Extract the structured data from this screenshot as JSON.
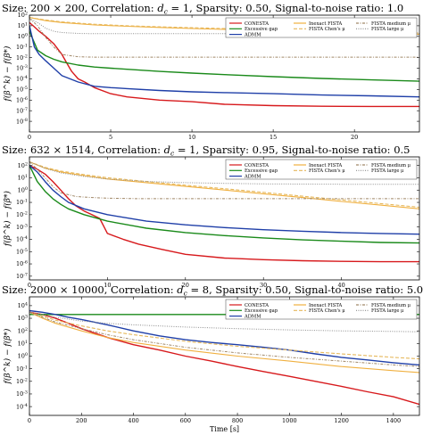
{
  "chart_data": [
    {
      "type": "line",
      "title": "Size: 200 × 200, Correlation: d_c = 1, Sparsity: 0.50, Signal-to-noise ratio: 1.0",
      "title_parts": {
        "size": "Size: 200 × 200, Correlation: ",
        "dc_symbol": "d",
        "dc_sub": "c",
        "rest": " = 1, Sparsity: 0.50, Signal-to-noise ratio: 1.0"
      },
      "xlabel": "",
      "ylabel": "f(β^k) − f(β*)",
      "xscale": "linear",
      "yscale": "log",
      "xlim": [
        0,
        24
      ],
      "ylim": [
        1e-09,
        100.0
      ],
      "xticks": [
        0,
        5,
        10,
        15,
        20
      ],
      "xtick_labels": [
        "0",
        "5",
        "10",
        "15",
        "20"
      ],
      "yticks": [
        100.0,
        10.0,
        1.0,
        0.1,
        0.01,
        0.001,
        0.0001,
        1e-05,
        1e-06,
        1e-07,
        1e-08
      ],
      "ytick_labels": [
        "10^2",
        "10^1",
        "10^0",
        "10^-1",
        "10^-2",
        "10^-3",
        "10^-4",
        "10^-5",
        "10^-6",
        "10^-7",
        "10^-8"
      ],
      "legend": {
        "placement": "top-right",
        "entries": [
          "CONESTA",
          "Excessive gap",
          "ADMM",
          "Inexact FISTA",
          "FISTA Chen's μ",
          "FISTA medium μ",
          "FISTA large μ"
        ]
      },
      "series": [
        {
          "name": "CONESTA",
          "x": [
            0,
            0.3,
            0.6,
            1,
            1.5,
            2,
            2.3,
            2.6,
            3,
            3.4,
            4,
            5,
            6,
            8,
            10,
            12,
            15,
            18,
            21,
            24
          ],
          "y": [
            20.0,
            8,
            3,
            1,
            0.2,
            0.02,
            0.003,
            0.0005,
            0.0001,
            5e-05,
            1.5e-05,
            4e-06,
            2e-06,
            1e-06,
            7e-07,
            4e-07,
            3e-07,
            2.6e-07,
            2.5e-07,
            2.5e-07
          ]
        },
        {
          "name": "Excessive gap",
          "x": [
            0,
            0.5,
            1,
            1.5,
            2,
            3,
            4,
            5,
            6,
            8,
            10,
            12,
            15,
            18,
            21,
            24
          ],
          "y": [
            3,
            0.05,
            0.015,
            0.007,
            0.004,
            0.002,
            0.0013,
            0.001,
            0.0008,
            0.0005,
            0.00035,
            0.00025,
            0.00016,
            0.00011,
            8e-05,
            6e-05
          ]
        },
        {
          "name": "ADMM",
          "x": [
            0,
            0.3,
            0.6,
            1,
            1.5,
            2,
            3,
            4,
            5,
            6,
            8,
            10,
            12,
            15,
            18,
            21,
            24
          ],
          "y": [
            10.0,
            0.1,
            0.02,
            0.005,
            0.001,
            0.0002,
            5e-05,
            2e-05,
            1.5e-05,
            1.2e-05,
            8e-06,
            6e-06,
            5e-06,
            4e-06,
            3e-06,
            2.5e-06,
            2e-06
          ]
        },
        {
          "name": "Inexact FISTA",
          "x": [
            0,
            1,
            2,
            4,
            6,
            8,
            10,
            12,
            15,
            18,
            21,
            24
          ],
          "y": [
            60.0,
            30.0,
            20.0,
            12.0,
            9,
            7,
            5.5,
            4.5,
            3.5,
            2.6,
            2.0,
            1.6
          ]
        },
        {
          "name": "FISTA Chen's μ",
          "x": [
            0,
            1,
            2,
            4,
            6,
            8,
            10,
            12,
            15,
            18,
            21,
            24
          ],
          "y": [
            60.0,
            35.0,
            23.0,
            14.0,
            10.0,
            8,
            6.5,
            5.5,
            4.2,
            3.3,
            2.6,
            2.1
          ]
        },
        {
          "name": "FISTA medium μ",
          "x": [
            0,
            0.5,
            1,
            1.5,
            2,
            3,
            4,
            6,
            8,
            12,
            16,
            20,
            24
          ],
          "y": [
            50.0,
            10.0,
            0.8,
            0.1,
            0.02,
            0.012,
            0.011,
            0.011,
            0.011,
            0.011,
            0.011,
            0.011,
            0.011
          ]
        },
        {
          "name": "FISTA large μ",
          "x": [
            0,
            0.5,
            1,
            1.5,
            2,
            3,
            4,
            6,
            8,
            12,
            16,
            20,
            24
          ],
          "y": [
            50.0,
            20.0,
            6,
            3,
            2.3,
            1.9,
            1.8,
            1.8,
            1.8,
            1.8,
            1.8,
            1.8,
            1.8
          ]
        }
      ]
    },
    {
      "type": "line",
      "title": "Size: 632 × 1514, Correlation: d_c = 1, Sparsity: 0.95, Signal-to-noise ratio: 0.5",
      "title_parts": {
        "size": "Size: 632 × 1514, Correlation: ",
        "dc_symbol": "d",
        "dc_sub": "c",
        "rest": " = 1, Sparsity: 0.95, Signal-to-noise ratio: 0.5"
      },
      "xlabel": "",
      "ylabel": "f(β^k) − f(β*)",
      "xscale": "linear",
      "yscale": "log",
      "xlim": [
        0,
        50
      ],
      "ylim": [
        5e-08,
        500.0
      ],
      "xticks": [
        0,
        10,
        20,
        30,
        40
      ],
      "xtick_labels": [
        "0",
        "10",
        "20",
        "30",
        "40"
      ],
      "yticks": [
        100.0,
        10.0,
        1.0,
        0.1,
        0.01,
        0.001,
        0.0001,
        1e-05,
        1e-06,
        1e-07
      ],
      "ytick_labels": [
        "10^2",
        "10^1",
        "10^0",
        "10^-1",
        "10^-2",
        "10^-3",
        "10^-4",
        "10^-5",
        "10^-6",
        "10^-7"
      ],
      "legend": {
        "placement": "top-right",
        "entries": [
          "CONESTA",
          "Excessive gap",
          "ADMM",
          "Inexact FISTA",
          "FISTA Chen's μ",
          "FISTA medium μ",
          "FISTA large μ"
        ]
      },
      "series": [
        {
          "name": "CONESTA",
          "x": [
            0,
            1,
            2,
            3,
            4,
            5,
            6,
            7,
            8,
            9,
            10,
            12,
            14,
            17,
            20,
            25,
            30,
            35,
            40,
            45,
            50
          ],
          "y": [
            100.0,
            50.0,
            20.0,
            5,
            1,
            0.2,
            0.05,
            0.02,
            0.01,
            0.005,
            0.0003,
            0.0001,
            4e-05,
            1.5e-05,
            6e-06,
            3e-06,
            2.2e-06,
            1.8e-06,
            1.6e-06,
            1.5e-06,
            1.5e-06
          ]
        },
        {
          "name": "Excessive gap",
          "x": [
            0,
            1,
            2,
            3,
            4,
            5,
            7,
            10,
            15,
            20,
            25,
            30,
            35,
            40,
            45,
            50
          ],
          "y": [
            100.0,
            5,
            0.8,
            0.2,
            0.07,
            0.03,
            0.01,
            0.003,
            0.0008,
            0.00035,
            0.0002,
            0.00013,
            9e-05,
            7e-05,
            5.5e-05,
            5e-05
          ]
        },
        {
          "name": "ADMM",
          "x": [
            0,
            1,
            2,
            3,
            4,
            5,
            7,
            10,
            15,
            20,
            25,
            30,
            35,
            40,
            45,
            50
          ],
          "y": [
            100.0,
            30.0,
            5,
            1,
            0.3,
            0.1,
            0.03,
            0.01,
            0.003,
            0.0015,
            0.0009,
            0.0006,
            0.00045,
            0.00035,
            0.0003,
            0.00026
          ]
        },
        {
          "name": "Inexact FISTA",
          "x": [
            0,
            2,
            4,
            7,
            10,
            15,
            20,
            25,
            30,
            35,
            40,
            45,
            50
          ],
          "y": [
            200.0,
            60.0,
            30.0,
            15.0,
            8,
            4,
            2,
            1,
            0.5,
            0.25,
            0.12,
            0.06,
            0.03
          ]
        },
        {
          "name": "FISTA Chen's μ",
          "x": [
            0,
            2,
            4,
            7,
            10,
            15,
            20,
            25,
            30,
            35,
            40,
            45,
            50
          ],
          "y": [
            200.0,
            70.0,
            35.0,
            18.0,
            10.0,
            5,
            2.5,
            1.3,
            0.65,
            0.32,
            0.16,
            0.08,
            0.04
          ]
        },
        {
          "name": "FISTA medium μ",
          "x": [
            0,
            1,
            2,
            3,
            4,
            6,
            8,
            10,
            14,
            20,
            30,
            40,
            50
          ],
          "y": [
            200.0,
            50.0,
            10.0,
            2,
            0.6,
            0.3,
            0.25,
            0.22,
            0.2,
            0.2,
            0.2,
            0.2,
            0.2
          ]
        },
        {
          "name": "FISTA large μ",
          "x": [
            0,
            2,
            4,
            7,
            10,
            15,
            20,
            25,
            30,
            35,
            40,
            45,
            50
          ],
          "y": [
            200.0,
            60.0,
            25.0,
            13.0,
            8,
            5,
            4,
            3.5,
            3.2,
            3.1,
            3,
            3,
            3
          ]
        }
      ]
    },
    {
      "type": "line",
      "title": "Size: 2000 × 10000, Correlation: d_c = 8, Sparsity: 0.50, Signal-to-noise ratio: 5.0",
      "title_parts": {
        "size": "Size: 2000 × 10000, Correlation: ",
        "dc_symbol": "d",
        "dc_sub": "c",
        "rest": " = 8, Sparsity: 0.50, Signal-to-noise ratio: 5.0"
      },
      "xlabel": "Time [s]",
      "ylabel": "f(β^k) − f(β*)",
      "xscale": "linear",
      "yscale": "log",
      "xlim": [
        0,
        1500
      ],
      "ylim": [
        2e-05,
        50000.0
      ],
      "xticks": [
        0,
        200,
        400,
        600,
        800,
        1000,
        1200,
        1400
      ],
      "xtick_labels": [
        "0",
        "200",
        "400",
        "600",
        "800",
        "1000",
        "1200",
        "1400"
      ],
      "yticks": [
        10000.0,
        1000.0,
        100.0,
        10.0,
        1.0,
        0.1,
        0.01,
        0.001,
        0.0001
      ],
      "ytick_labels": [
        "10^4",
        "10^3",
        "10^2",
        "10^1",
        "10^0",
        "10^-1",
        "10^-2",
        "10^-3",
        "10^-4"
      ],
      "legend": {
        "placement": "top-right",
        "entries": [
          "CONESTA",
          "Excessive gap",
          "ADMM",
          "Inexact FISTA",
          "FISTA Chen's μ",
          "FISTA medium μ",
          "FISTA large μ"
        ]
      },
      "series": [
        {
          "name": "CONESTA",
          "x": [
            0,
            50,
            100,
            150,
            200,
            300,
            400,
            500,
            600,
            700,
            800,
            900,
            1000,
            1100,
            1200,
            1300,
            1400,
            1500
          ],
          "y": [
            3000.0,
            2000.0,
            1000.0,
            400,
            150,
            30,
            8,
            3,
            1,
            0.4,
            0.15,
            0.06,
            0.025,
            0.01,
            0.004,
            0.0015,
            0.0006,
            0.00015
          ]
        },
        {
          "name": "Excessive gap",
          "x": [
            0,
            50,
            100,
            200,
            400,
            600,
            800,
            1000,
            1200,
            1400,
            1500
          ],
          "y": [
            2000.0,
            2000.0,
            2000.0,
            2000.0,
            2000.0,
            2000.0,
            2000.0,
            2000.0,
            2000.0,
            2000.0,
            2000.0
          ]
        },
        {
          "name": "ADMM",
          "x": [
            0,
            50,
            100,
            150,
            200,
            300,
            400,
            500,
            600,
            700,
            800,
            900,
            1000,
            1100,
            1200,
            1300,
            1400,
            1500
          ],
          "y": [
            4000.0,
            3000.0,
            2000.0,
            1200.0,
            800,
            300,
            100,
            40,
            20,
            12,
            8,
            5,
            3,
            1.5,
            0.8,
            0.5,
            0.3,
            0.2
          ]
        },
        {
          "name": "Inexact FISTA",
          "x": [
            0,
            50,
            100,
            200,
            300,
            400,
            600,
            800,
            1000,
            1200,
            1400,
            1500
          ],
          "y": [
            3000.0,
            1000.0,
            400,
            100,
            30,
            12,
            3,
            1,
            0.4,
            0.15,
            0.07,
            0.05
          ]
        },
        {
          "name": "FISTA Chen's μ",
          "x": [
            0,
            50,
            100,
            200,
            300,
            400,
            600,
            800,
            1000,
            1200,
            1400,
            1500
          ],
          "y": [
            3000.0,
            1500.0,
            700,
            250,
            100,
            50,
            15,
            6,
            3,
            1.5,
            0.8,
            0.6
          ]
        },
        {
          "name": "FISTA medium μ",
          "x": [
            0,
            50,
            100,
            200,
            300,
            400,
            600,
            800,
            1000,
            1200,
            1400,
            1500
          ],
          "y": [
            3000.0,
            1200.0,
            500,
            150,
            50,
            20,
            5,
            1.8,
            0.8,
            0.4,
            0.2,
            0.15
          ]
        },
        {
          "name": "FISTA large μ",
          "x": [
            0,
            50,
            100,
            200,
            300,
            400,
            600,
            800,
            1000,
            1200,
            1400,
            1500
          ],
          "y": [
            3000.0,
            2000.0,
            1200.0,
            600,
            400,
            300,
            200,
            150,
            120,
            100,
            90,
            85
          ]
        }
      ]
    }
  ],
  "colors": {
    "conesta": "#d7191c",
    "excessive_gap": "#1a8a1a",
    "admm": "#1f3fa8",
    "inexact_fista": "#f0b040",
    "fista_chen": "#e6b85c",
    "fista_medium": "#a08868",
    "fista_large": "#8c8c8c"
  }
}
